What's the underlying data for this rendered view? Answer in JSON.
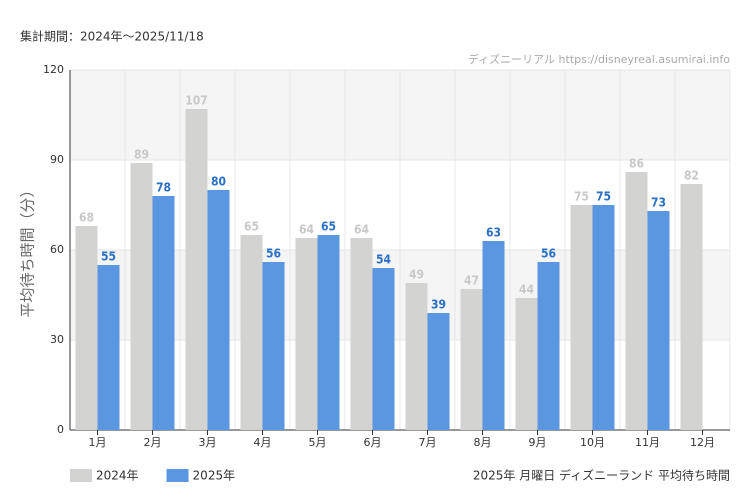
{
  "chart_data": {
    "type": "bar",
    "title": "集計期間：2024年〜2025/11/18",
    "source": "ディズニーリアル https://disneyreal.asumirai.info",
    "caption": "2025年 月曜日 ディズニーランド 平均待ち時間",
    "ylabel": "平均待ち時間（分）",
    "categories": [
      "1月",
      "2月",
      "3月",
      "4月",
      "5月",
      "6月",
      "7月",
      "8月",
      "9月",
      "10月",
      "11月",
      "12月"
    ],
    "series": [
      {
        "name": "2024年",
        "color": "#d3d3d1",
        "label_color": "#c8c8c8",
        "values": [
          68,
          89,
          107,
          65,
          64,
          64,
          49,
          47,
          44,
          75,
          86,
          82
        ]
      },
      {
        "name": "2025年",
        "color": "#5b96e0",
        "label_color": "#2a6fc6",
        "values": [
          55,
          78,
          80,
          56,
          65,
          54,
          39,
          63,
          56,
          75,
          73,
          null
        ]
      }
    ],
    "ylim": [
      0,
      120
    ],
    "yticks": [
      0,
      30,
      60,
      90,
      120
    ],
    "grid": true,
    "legend": "bottom-left"
  }
}
